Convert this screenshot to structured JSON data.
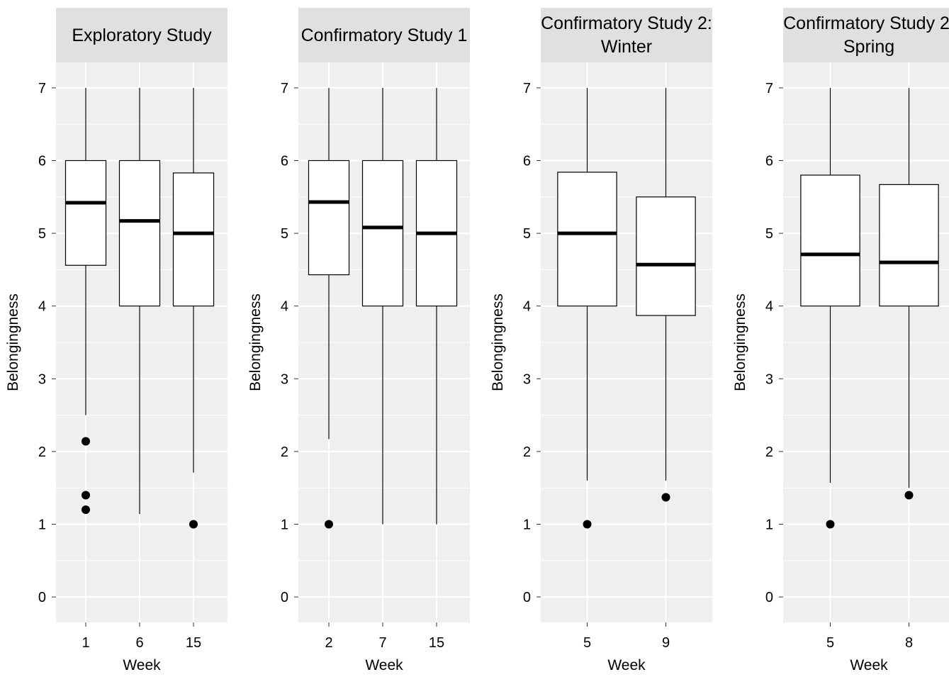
{
  "chart_data": {
    "type": "boxplot",
    "layout": "facets-1x4",
    "grid": true,
    "legend": "none",
    "ylim": [
      -0.35,
      7.35
    ],
    "y_ticks": [
      0,
      1,
      2,
      3,
      4,
      5,
      6,
      7
    ],
    "panels": [
      {
        "strip_lines": [
          "Exploratory Study"
        ],
        "xlabel": "Week",
        "ylabel": "Belongingness",
        "categories": [
          "1",
          "6",
          "15"
        ],
        "boxes": [
          {
            "whisker_low": 2.5,
            "q1": 4.56,
            "median": 5.42,
            "q3": 6.0,
            "whisker_high": 7.0,
            "outliers": [
              2.14,
              1.4,
              1.2
            ]
          },
          {
            "whisker_low": 1.14,
            "q1": 4.0,
            "median": 5.17,
            "q3": 6.0,
            "whisker_high": 7.0,
            "outliers": []
          },
          {
            "whisker_low": 1.71,
            "q1": 4.0,
            "median": 5.0,
            "q3": 5.83,
            "whisker_high": 7.0,
            "outliers": [
              1.0
            ]
          }
        ]
      },
      {
        "strip_lines": [
          "Confirmatory Study 1"
        ],
        "xlabel": "Week",
        "ylabel": "Belongingness",
        "categories": [
          "2",
          "7",
          "15"
        ],
        "boxes": [
          {
            "whisker_low": 2.17,
            "q1": 4.43,
            "median": 5.43,
            "q3": 6.0,
            "whisker_high": 7.0,
            "outliers": [
              1.0
            ]
          },
          {
            "whisker_low": 1.0,
            "q1": 4.0,
            "median": 5.08,
            "q3": 6.0,
            "whisker_high": 7.0,
            "outliers": []
          },
          {
            "whisker_low": 1.0,
            "q1": 4.0,
            "median": 5.0,
            "q3": 6.0,
            "whisker_high": 7.0,
            "outliers": []
          }
        ]
      },
      {
        "strip_lines": [
          "Confirmatory Study 2:",
          "Winter"
        ],
        "xlabel": "Week",
        "ylabel": "Belongingness",
        "categories": [
          "5",
          "9"
        ],
        "boxes": [
          {
            "whisker_low": 1.6,
            "q1": 4.0,
            "median": 5.0,
            "q3": 5.84,
            "whisker_high": 7.0,
            "outliers": [
              1.0
            ]
          },
          {
            "whisker_low": 1.6,
            "q1": 3.87,
            "median": 4.57,
            "q3": 5.5,
            "whisker_high": 7.0,
            "outliers": [
              1.37
            ]
          }
        ]
      },
      {
        "strip_lines": [
          "Confirmatory Study 2:",
          "Spring"
        ],
        "xlabel": "Week",
        "ylabel": "Belongingness",
        "categories": [
          "5",
          "8"
        ],
        "boxes": [
          {
            "whisker_low": 1.57,
            "q1": 4.0,
            "median": 4.71,
            "q3": 5.8,
            "whisker_high": 7.0,
            "outliers": [
              1.0
            ]
          },
          {
            "whisker_low": 1.5,
            "q1": 4.0,
            "median": 4.6,
            "q3": 5.67,
            "whisker_high": 7.0,
            "outliers": [
              1.4
            ]
          }
        ]
      }
    ]
  }
}
